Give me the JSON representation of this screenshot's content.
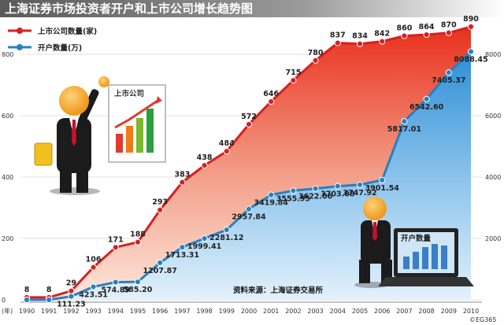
{
  "title": "上海证券市场投资者开户和上市公司增长趋势图",
  "source_note": "资料来源：上海证券交易所",
  "watermark": "©EG365",
  "xaxis_unit": "(年)",
  "illustration_labels": {
    "companies_sign": "上市公司",
    "accounts_screen": "开户数量"
  },
  "colors": {
    "companies": "#d62020",
    "accounts": "#2a7fc1",
    "title_bg": "#7a7a7a"
  },
  "chart_data": {
    "type": "line",
    "title": "上海证券市场投资者开户和上市公司增长趋势图",
    "x": [
      "1990",
      "1991",
      "1992",
      "1993",
      "1994",
      "1995",
      "1996",
      "1997",
      "1998",
      "1999",
      "2000",
      "2001",
      "2002",
      "2003",
      "2004",
      "2005",
      "2006",
      "2007",
      "2008",
      "2009",
      "2010"
    ],
    "series": [
      {
        "name": "上市公司数量(家)",
        "axis": "left",
        "values": [
          8,
          8,
          29,
          106,
          171,
          188,
          293,
          383,
          438,
          484,
          572,
          646,
          715,
          780,
          837,
          834,
          842,
          860,
          864,
          870,
          890
        ],
        "labels": [
          "8",
          "8",
          "29",
          "106",
          "171",
          "188",
          "293",
          "383",
          "438",
          "484",
          "572",
          "646",
          "715",
          "780",
          "837",
          "834",
          "842",
          "860",
          "864",
          "870",
          "890"
        ]
      },
      {
        "name": "开户数量(万)",
        "axis": "right",
        "values": [
          0,
          0,
          111.23,
          423.51,
          574.89,
          585.2,
          1207.87,
          1713.31,
          1999.41,
          2281.12,
          2957.84,
          3419.84,
          3555.95,
          3622.06,
          3703.08,
          3747.92,
          3901.54,
          5817.01,
          6542.6,
          7405.37,
          8088.45
        ],
        "labels": [
          "",
          "",
          "111.23",
          "423.51",
          "574.89",
          "585.20",
          "1207.87",
          "1713.31",
          "1999.41",
          "2281.12",
          "2957.84",
          "3419.84",
          "3555.95",
          "3622.06",
          "3703.08",
          "3747.92",
          "3901.54",
          "5817.01",
          "6542.60",
          "7405.37",
          "8088.45"
        ]
      }
    ],
    "yleft": {
      "lim": [
        0,
        900
      ],
      "ticks": [
        0,
        200,
        400,
        600,
        800
      ]
    },
    "yright": {
      "lim": [
        0,
        9000
      ],
      "ticks": [
        2000,
        4000,
        6000,
        8000
      ]
    },
    "grid": true,
    "legend": "top-left"
  }
}
